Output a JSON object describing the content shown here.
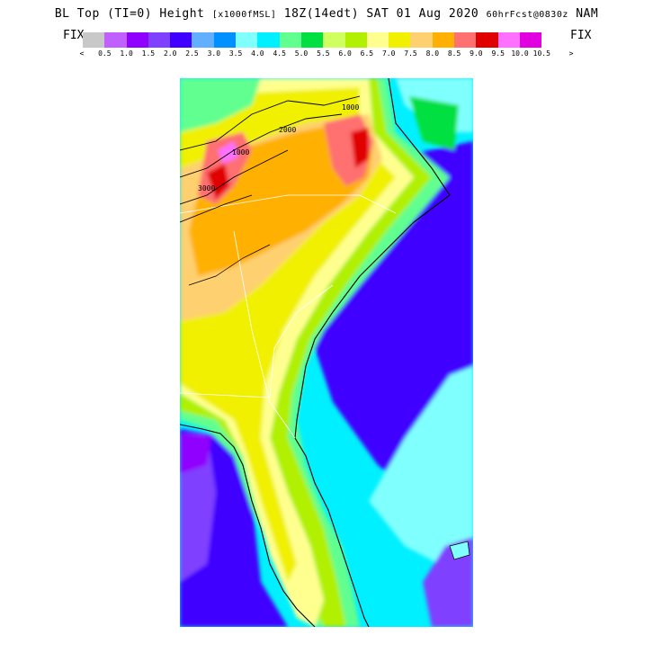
{
  "header": {
    "title_main": "BL Top (TI=0) Height",
    "title_units": "[x1000fMSL]",
    "title_time": "18Z(14edt) SAT 01 Aug 2020",
    "title_run": "60hrFcst@0830z",
    "title_model": "NAM"
  },
  "legend": {
    "fix_left": "FIX",
    "fix_right": "FIX",
    "arrow_left": "<",
    "arrow_right": ">",
    "colors": [
      "#c8c8c8",
      "#c060ff",
      "#9000ff",
      "#8040ff",
      "#4000ff",
      "#60b0ff",
      "#0090ff",
      "#80ffff",
      "#00f0ff",
      "#60ff90",
      "#00e040",
      "#d0ff60",
      "#b0f000",
      "#ffff90",
      "#f0f000",
      "#ffd070",
      "#ffb000",
      "#ff7070",
      "#e00000",
      "#ff70ff",
      "#e000e0"
    ],
    "tick_labels": [
      "0.5",
      "1.0",
      "1.5",
      "2.0",
      "2.5",
      "3.0",
      "3.5",
      "4.0",
      "4.5",
      "5.0",
      "5.5",
      "6.0",
      "6.5",
      "7.0",
      "7.5",
      "8.0",
      "8.5",
      "9.0",
      "9.5",
      "10.0",
      "10.5"
    ]
  },
  "map": {
    "contour_labels": [
      "1000",
      "2000",
      "3000",
      "1000"
    ]
  }
}
